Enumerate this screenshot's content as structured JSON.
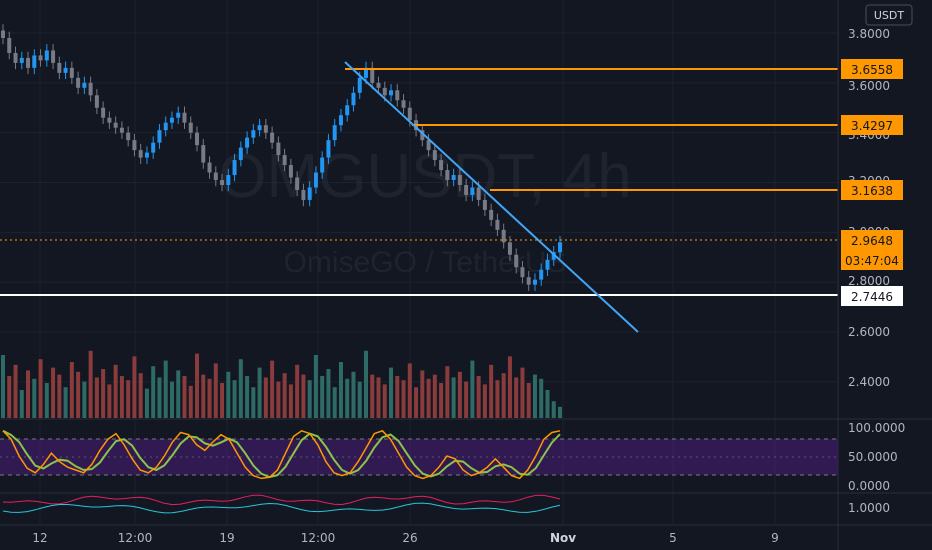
{
  "watermark": {
    "symbol": "OMGUSDT, 4h",
    "pair": "OmiseGO / TetherUS"
  },
  "currency_badge": "USDT",
  "price_axis": {
    "ticks": [
      "3.8000",
      "3.6000",
      "3.4000",
      "3.2000",
      "3.0000",
      "2.8000",
      "2.6000",
      "2.4000"
    ]
  },
  "oscillator_axis": {
    "ticks": [
      "100.0000",
      "50.0000",
      "0.0000"
    ]
  },
  "bottom_axis": {
    "ticks": [
      "1.0000"
    ]
  },
  "time_axis": {
    "labels": [
      "12",
      "12:00",
      "19",
      "12:00",
      "26",
      "Nov",
      "5",
      "9"
    ]
  },
  "badges": {
    "level_1": "3.6558",
    "level_2": "3.4297",
    "level_3": "3.1638",
    "last_price": "2.9648",
    "countdown": "03:47:04",
    "support": "2.7446"
  },
  "colors": {
    "background": "#131722",
    "up": "#26a69a",
    "up_candle": "#2196f3",
    "down": "#787b86",
    "level": "#ff9800",
    "trendline": "#42a5f5",
    "support": "#ffffff",
    "volume_up": "#2e6b67",
    "volume_down": "#8a3b3b",
    "stoch_k": "#ff9800",
    "stoch_d": "#8bc34a",
    "stoch_band": "#4a1d7a"
  },
  "chart_data": {
    "type": "line",
    "title": "OMGUSDT, 4h",
    "price_ylim": [
      2.35,
      3.85
    ],
    "close": [
      3.78,
      3.72,
      3.68,
      3.7,
      3.66,
      3.71,
      3.69,
      3.73,
      3.68,
      3.64,
      3.66,
      3.62,
      3.58,
      3.6,
      3.55,
      3.5,
      3.46,
      3.44,
      3.42,
      3.4,
      3.37,
      3.33,
      3.3,
      3.32,
      3.36,
      3.41,
      3.44,
      3.46,
      3.48,
      3.44,
      3.4,
      3.35,
      3.28,
      3.24,
      3.21,
      3.19,
      3.23,
      3.29,
      3.34,
      3.38,
      3.41,
      3.43,
      3.4,
      3.36,
      3.31,
      3.27,
      3.22,
      3.17,
      3.13,
      3.18,
      3.24,
      3.3,
      3.37,
      3.43,
      3.47,
      3.51,
      3.56,
      3.62,
      3.66,
      3.6,
      3.58,
      3.55,
      3.57,
      3.53,
      3.5,
      3.45,
      3.41,
      3.37,
      3.33,
      3.29,
      3.25,
      3.21,
      3.23,
      3.19,
      3.15,
      3.18,
      3.13,
      3.09,
      3.05,
      3.01,
      2.96,
      2.91,
      2.86,
      2.82,
      2.79,
      2.81,
      2.85,
      2.89,
      2.92,
      2.96
    ],
    "resistance_levels": [
      3.6558,
      3.4297,
      3.1638
    ],
    "support_level": 2.7446,
    "last_price": 2.9648,
    "trendline": {
      "from_index": 61,
      "from_price": 3.67,
      "to_index": 112,
      "to_price": 2.58
    },
    "volume": [
      45,
      30,
      38,
      20,
      34,
      28,
      42,
      25,
      36,
      31,
      22,
      40,
      33,
      26,
      48,
      29,
      35,
      24,
      38,
      30,
      27,
      44,
      32,
      21,
      37,
      29,
      41,
      26,
      34,
      30,
      23,
      46,
      31,
      28,
      39,
      25,
      33,
      27,
      42,
      30,
      22,
      36,
      29,
      41,
      26,
      32,
      24,
      38,
      31,
      27,
      45,
      30,
      35,
      22,
      40,
      28,
      33,
      26,
      48,
      31,
      29,
      24,
      36,
      30,
      27,
      39,
      22,
      34,
      28,
      31,
      25,
      37,
      29,
      33,
      26,
      41,
      30,
      24,
      38,
      27,
      32,
      44,
      29,
      36,
      25,
      31,
      28,
      20,
      12,
      8
    ],
    "oscillator_ylim": [
      0,
      100
    ],
    "stoch_k": [
      95,
      80,
      50,
      28,
      20,
      35,
      55,
      40,
      30,
      25,
      20,
      35,
      60,
      80,
      90,
      70,
      45,
      25,
      20,
      30,
      50,
      75,
      92,
      88,
      70,
      60,
      75,
      88,
      80,
      55,
      30,
      15,
      10,
      12,
      25,
      55,
      85,
      95,
      90,
      70,
      40,
      20,
      15,
      20,
      40,
      65,
      90,
      95,
      80,
      55,
      30,
      15,
      10,
      15,
      30,
      50,
      45,
      25,
      15,
      20,
      30,
      45,
      30,
      15,
      10,
      25,
      50,
      80,
      92,
      95
    ]
  }
}
